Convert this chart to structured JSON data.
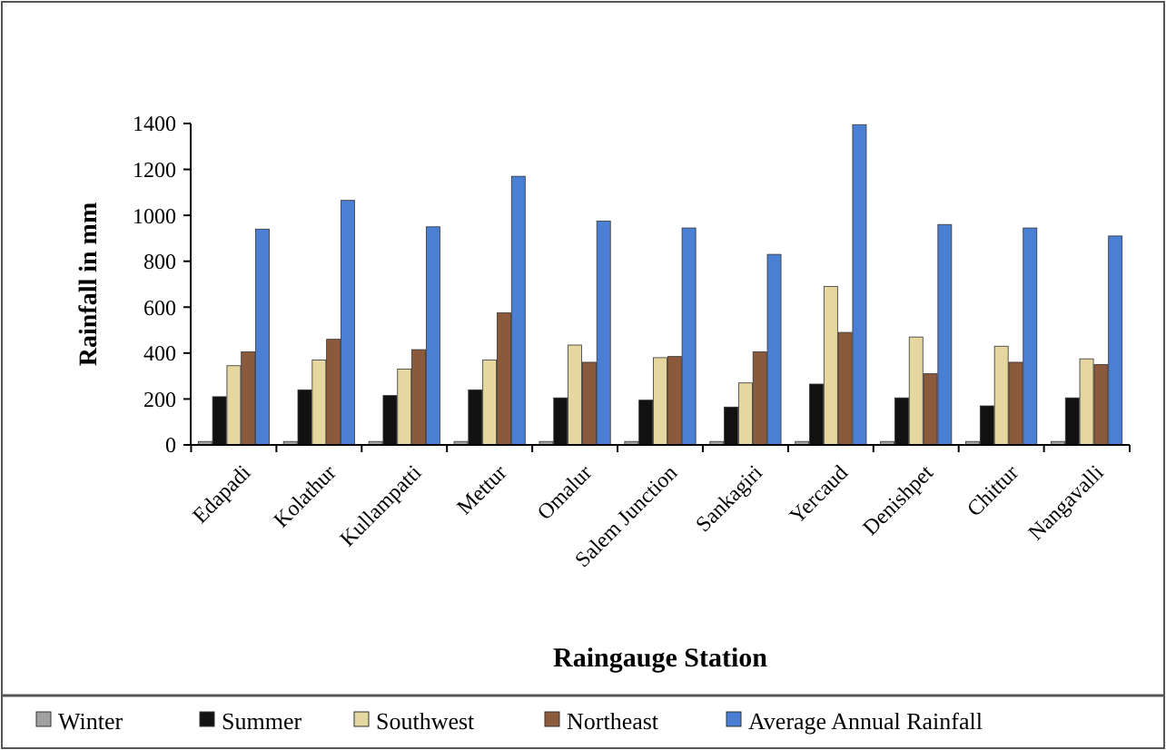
{
  "chart_data": {
    "type": "bar",
    "xlabel": "Raingauge Station",
    "ylabel": "Rainfall in mm",
    "categories": [
      "Edapadi",
      "Kolathur",
      "Kullampatti",
      "Mettur",
      "Omalur",
      "Salem Junction",
      "Sankagiri",
      "Yercaud",
      "Denishpet",
      "Chittur",
      "Nangavalli"
    ],
    "series": [
      {
        "name": "Winter",
        "color": "#a0a0a0",
        "values": [
          15,
          15,
          15,
          15,
          15,
          15,
          15,
          15,
          15,
          15,
          15
        ]
      },
      {
        "name": "Summer",
        "color": "#111111",
        "values": [
          210,
          240,
          215,
          240,
          205,
          195,
          165,
          265,
          205,
          170,
          205
        ]
      },
      {
        "name": "Southwest",
        "color": "#e6d7a0",
        "values": [
          345,
          370,
          330,
          370,
          435,
          380,
          270,
          690,
          470,
          430,
          375
        ]
      },
      {
        "name": "Northeast",
        "color": "#8b5a3c",
        "values": [
          405,
          460,
          415,
          575,
          360,
          385,
          405,
          490,
          310,
          360,
          350
        ]
      },
      {
        "name": "Average Annual Rainfall",
        "color": "#4a7fd4",
        "values": [
          940,
          1065,
          950,
          1170,
          975,
          945,
          830,
          1395,
          960,
          945,
          910
        ]
      }
    ],
    "ylim": [
      0,
      1400
    ],
    "yticks": [
      0,
      200,
      400,
      600,
      800,
      1000,
      1200,
      1400
    ],
    "grid": false,
    "legend": "bottom"
  }
}
